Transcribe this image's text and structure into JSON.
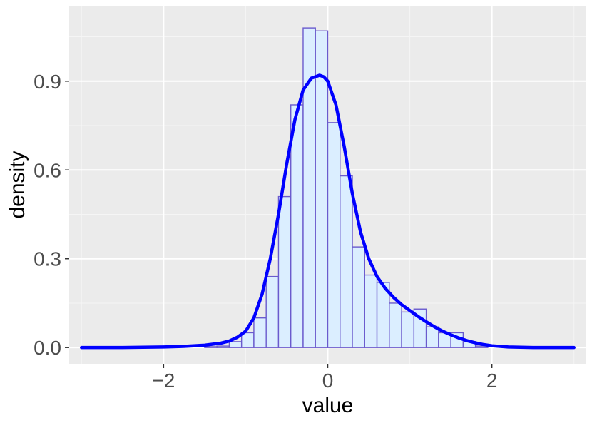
{
  "chart_data": {
    "type": "bar",
    "subtype": "histogram-with-density",
    "title": "",
    "xlabel": "value",
    "ylabel": "density",
    "xlim": [
      -3.15,
      3.15
    ],
    "ylim": [
      -0.055,
      1.155
    ],
    "x_ticks": [
      {
        "value": -2,
        "label": "−2"
      },
      {
        "value": 0,
        "label": "0"
      },
      {
        "value": 2,
        "label": "2"
      }
    ],
    "y_ticks": [
      {
        "value": 0.0,
        "label": "0.0"
      },
      {
        "value": 0.3,
        "label": "0.3"
      },
      {
        "value": 0.6,
        "label": "0.6"
      },
      {
        "value": 0.9,
        "label": "0.9"
      }
    ],
    "grid": true,
    "legend": "none",
    "colors": {
      "panel_background": "#ebebeb",
      "grid_major": "#ffffff",
      "grid_minor": "#f5f5f5",
      "bar_fill": "#dbeeff",
      "bar_outline": "#6a5acd",
      "density_line": "#0000ff"
    },
    "histogram": {
      "bin_width": 0.15,
      "bins": [
        {
          "x_start": -1.5,
          "x_end": -1.35,
          "density": 0.003
        },
        {
          "x_start": -1.35,
          "x_end": -1.2,
          "density": 0.005
        },
        {
          "x_start": -1.2,
          "x_end": -1.05,
          "density": 0.02
        },
        {
          "x_start": -1.05,
          "x_end": -0.9,
          "density": 0.05
        },
        {
          "x_start": -0.9,
          "x_end": -0.75,
          "density": 0.1
        },
        {
          "x_start": -0.75,
          "x_end": -0.6,
          "density": 0.24
        },
        {
          "x_start": -0.6,
          "x_end": -0.45,
          "density": 0.51
        },
        {
          "x_start": -0.45,
          "x_end": -0.3,
          "density": 0.82
        },
        {
          "x_start": -0.3,
          "x_end": -0.15,
          "density": 1.08
        },
        {
          "x_start": -0.15,
          "x_end": 0.0,
          "density": 1.07
        },
        {
          "x_start": 0.0,
          "x_end": 0.15,
          "density": 0.76
        },
        {
          "x_start": 0.15,
          "x_end": 0.3,
          "density": 0.58
        },
        {
          "x_start": 0.3,
          "x_end": 0.45,
          "density": 0.34
        },
        {
          "x_start": 0.45,
          "x_end": 0.6,
          "density": 0.245
        },
        {
          "x_start": 0.6,
          "x_end": 0.75,
          "density": 0.22
        },
        {
          "x_start": 0.75,
          "x_end": 0.9,
          "density": 0.15
        },
        {
          "x_start": 0.9,
          "x_end": 1.05,
          "density": 0.12
        },
        {
          "x_start": 1.05,
          "x_end": 1.2,
          "density": 0.13
        },
        {
          "x_start": 1.2,
          "x_end": 1.35,
          "density": 0.07
        },
        {
          "x_start": 1.35,
          "x_end": 1.5,
          "density": 0.05
        },
        {
          "x_start": 1.5,
          "x_end": 1.65,
          "density": 0.05
        },
        {
          "x_start": 1.65,
          "x_end": 1.8,
          "density": 0.02
        },
        {
          "x_start": 1.8,
          "x_end": 1.95,
          "density": 0.005
        }
      ]
    },
    "density_curve": {
      "x": [
        -3.0,
        -2.5,
        -2.0,
        -1.75,
        -1.5,
        -1.3,
        -1.2,
        -1.1,
        -1.0,
        -0.9,
        -0.8,
        -0.7,
        -0.6,
        -0.5,
        -0.4,
        -0.3,
        -0.2,
        -0.1,
        -0.05,
        0.0,
        0.1,
        0.2,
        0.3,
        0.4,
        0.5,
        0.6,
        0.7,
        0.8,
        0.9,
        1.0,
        1.1,
        1.2,
        1.3,
        1.4,
        1.5,
        1.6,
        1.7,
        1.8,
        1.9,
        2.0,
        2.2,
        2.5,
        3.0
      ],
      "y": [
        0.0,
        0.0,
        0.002,
        0.004,
        0.008,
        0.015,
        0.022,
        0.035,
        0.055,
        0.1,
        0.18,
        0.3,
        0.45,
        0.62,
        0.77,
        0.87,
        0.91,
        0.92,
        0.915,
        0.9,
        0.82,
        0.68,
        0.52,
        0.39,
        0.3,
        0.24,
        0.2,
        0.17,
        0.145,
        0.125,
        0.105,
        0.087,
        0.07,
        0.055,
        0.043,
        0.032,
        0.023,
        0.016,
        0.01,
        0.006,
        0.002,
        0.0,
        0.0
      ]
    }
  }
}
